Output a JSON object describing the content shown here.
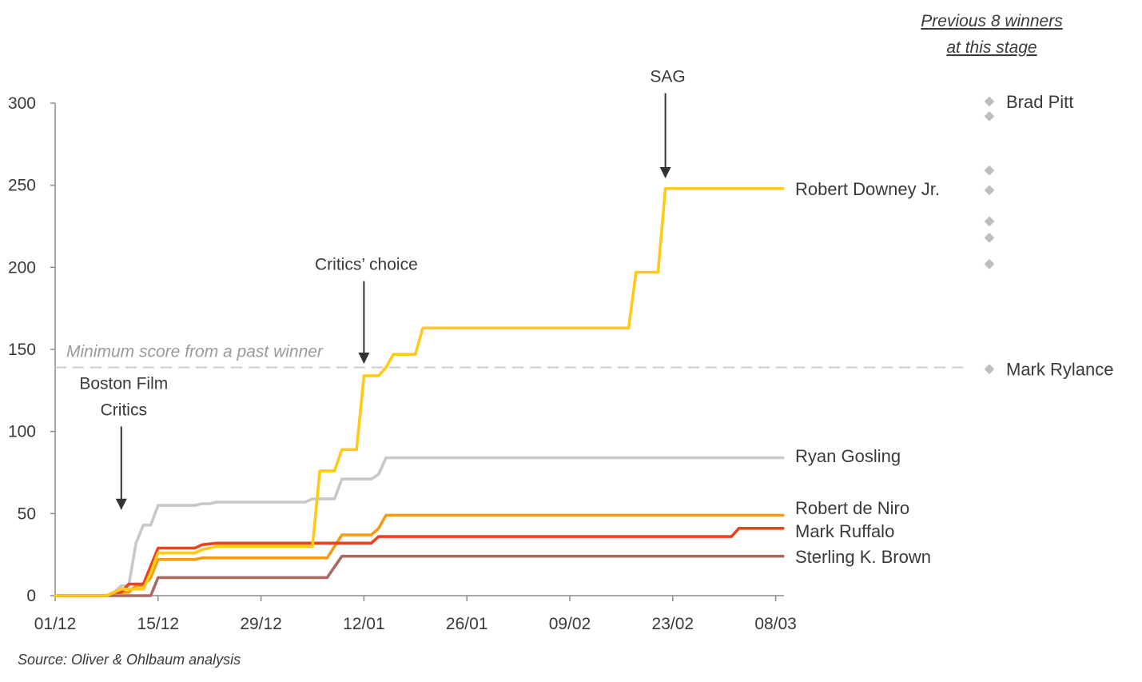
{
  "chart_data": {
    "type": "line",
    "x_axis": {
      "ticks": [
        "01/12",
        "15/12",
        "29/12",
        "12/01",
        "26/01",
        "09/02",
        "23/02",
        "08/03"
      ],
      "range": [
        "2023-12-01",
        "2024-03-10"
      ]
    },
    "y_axis": {
      "ticks": [
        0,
        50,
        100,
        150,
        200,
        250,
        300
      ],
      "ylim": [
        0,
        310
      ]
    },
    "grid": false,
    "series": [
      {
        "name": "Robert Downey Jr.",
        "color": "#FFC914",
        "points": [
          [
            "2023-12-01",
            0
          ],
          [
            "2023-12-08",
            0
          ],
          [
            "2023-12-09",
            2
          ],
          [
            "2023-12-10",
            4
          ],
          [
            "2023-12-13",
            4
          ],
          [
            "2023-12-14",
            14
          ],
          [
            "2023-12-15",
            26
          ],
          [
            "2023-12-20",
            26
          ],
          [
            "2023-12-21",
            28
          ],
          [
            "2023-12-23",
            30
          ],
          [
            "2024-01-05",
            30
          ],
          [
            "2024-01-06",
            76
          ],
          [
            "2024-01-08",
            76
          ],
          [
            "2024-01-09",
            89
          ],
          [
            "2024-01-11",
            89
          ],
          [
            "2024-01-12",
            134
          ],
          [
            "2024-01-14",
            134
          ],
          [
            "2024-01-15",
            139
          ],
          [
            "2024-01-16",
            147
          ],
          [
            "2024-01-19",
            147
          ],
          [
            "2024-01-20",
            163
          ],
          [
            "2024-02-17",
            163
          ],
          [
            "2024-02-18",
            197
          ],
          [
            "2024-02-21",
            197
          ],
          [
            "2024-02-22",
            248
          ],
          [
            "2024-03-09",
            248
          ]
        ]
      },
      {
        "name": "Ryan Gosling",
        "color": "#C8C8C8",
        "points": [
          [
            "2023-12-01",
            0
          ],
          [
            "2023-12-08",
            0
          ],
          [
            "2023-12-09",
            2
          ],
          [
            "2023-12-10",
            6
          ],
          [
            "2023-12-11",
            6
          ],
          [
            "2023-12-12",
            32
          ],
          [
            "2023-12-13",
            43
          ],
          [
            "2023-12-14",
            43
          ],
          [
            "2023-12-15",
            55
          ],
          [
            "2023-12-20",
            55
          ],
          [
            "2023-12-21",
            56
          ],
          [
            "2023-12-22",
            56
          ],
          [
            "2023-12-23",
            57
          ],
          [
            "2024-01-04",
            57
          ],
          [
            "2024-01-05",
            59
          ],
          [
            "2024-01-08",
            59
          ],
          [
            "2024-01-09",
            71
          ],
          [
            "2024-01-13",
            71
          ],
          [
            "2024-01-14",
            74
          ],
          [
            "2024-01-15",
            84
          ],
          [
            "2024-03-09",
            84
          ]
        ]
      },
      {
        "name": "Robert de Niro",
        "color": "#F39C12",
        "points": [
          [
            "2023-12-01",
            0
          ],
          [
            "2023-12-08",
            0
          ],
          [
            "2023-12-09",
            2
          ],
          [
            "2023-12-11",
            2
          ],
          [
            "2023-12-12",
            6
          ],
          [
            "2023-12-13",
            6
          ],
          [
            "2023-12-14",
            11
          ],
          [
            "2023-12-15",
            22
          ],
          [
            "2023-12-20",
            22
          ],
          [
            "2023-12-21",
            23
          ],
          [
            "2024-01-07",
            23
          ],
          [
            "2024-01-09",
            37
          ],
          [
            "2024-01-13",
            37
          ],
          [
            "2024-01-14",
            41
          ],
          [
            "2024-01-15",
            49
          ],
          [
            "2024-03-09",
            49
          ]
        ]
      },
      {
        "name": "Mark Ruffalo",
        "color": "#E8431C",
        "points": [
          [
            "2023-12-01",
            0
          ],
          [
            "2023-12-08",
            0
          ],
          [
            "2023-12-09",
            2
          ],
          [
            "2023-12-10",
            2
          ],
          [
            "2023-12-11",
            7
          ],
          [
            "2023-12-12",
            7
          ],
          [
            "2023-12-13",
            7
          ],
          [
            "2023-12-14",
            18
          ],
          [
            "2023-12-15",
            29
          ],
          [
            "2023-12-20",
            29
          ],
          [
            "2023-12-21",
            31
          ],
          [
            "2023-12-23",
            32
          ],
          [
            "2024-01-13",
            32
          ],
          [
            "2024-01-14",
            36
          ],
          [
            "2024-03-02",
            36
          ],
          [
            "2024-03-03",
            41
          ],
          [
            "2024-03-09",
            41
          ]
        ]
      },
      {
        "name": "Sterling K. Brown",
        "color": "#A86B62",
        "points": [
          [
            "2023-12-01",
            0
          ],
          [
            "2023-12-12",
            0
          ],
          [
            "2023-12-13",
            0
          ],
          [
            "2023-12-14",
            0
          ],
          [
            "2023-12-15",
            11
          ],
          [
            "2024-01-07",
            11
          ],
          [
            "2024-01-09",
            24
          ],
          [
            "2024-03-09",
            24
          ]
        ]
      }
    ],
    "reference_line": {
      "label": "Minimum score from a past winner",
      "value": 139,
      "color": "#C8C8C8"
    },
    "annotations": [
      {
        "label_lines": [
          "Boston Film",
          "Critics"
        ],
        "x": "2023-12-10",
        "target_y": 50
      },
      {
        "label_lines": [
          "Critics’ choice"
        ],
        "x": "2024-01-12",
        "target_y": 139
      },
      {
        "label_lines": [
          "SAG"
        ],
        "x": "2024-02-22",
        "target_y": 252
      }
    ],
    "previous_winners": {
      "title_lines": [
        "Previous 8 winners",
        "at this stage"
      ],
      "color": "#BEBEBE",
      "values": [
        301,
        292,
        259,
        247,
        228,
        218,
        202,
        138
      ],
      "labels": [
        {
          "text": "Brad Pitt",
          "value": 301
        },
        {
          "text": "Mark Rylance",
          "value": 138
        }
      ]
    },
    "source": "Source: Oliver & Ohlbaum analysis"
  }
}
